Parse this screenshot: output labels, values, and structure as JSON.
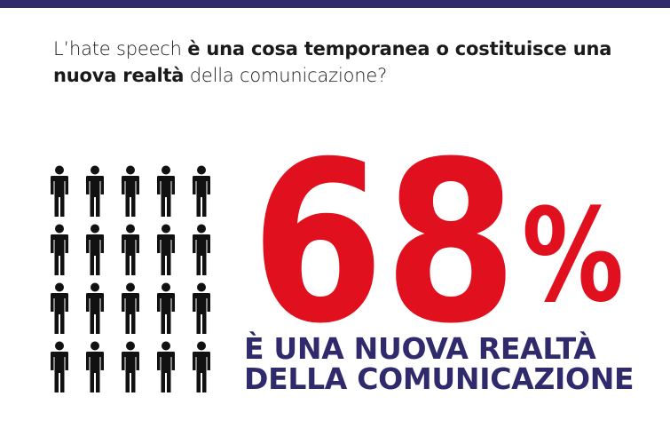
{
  "question": {
    "part1": "L’hate speech ",
    "part2": "è una cosa temporanea o costituisce una nuova realtà",
    "part3": " della comunicazione?"
  },
  "stat": {
    "value": "68",
    "unit": "%",
    "color": "#e0101e"
  },
  "answer": {
    "line1": "È UNA NUOVA REALTÀ",
    "line2": "DELLA COMUNICAZIONE"
  },
  "colors": {
    "accent_dark": "#2e2a6b",
    "accent_red": "#e0101e",
    "icon": "#111111"
  },
  "people_grid": {
    "icon": "person-icon",
    "rows": 4,
    "columns": 5
  }
}
